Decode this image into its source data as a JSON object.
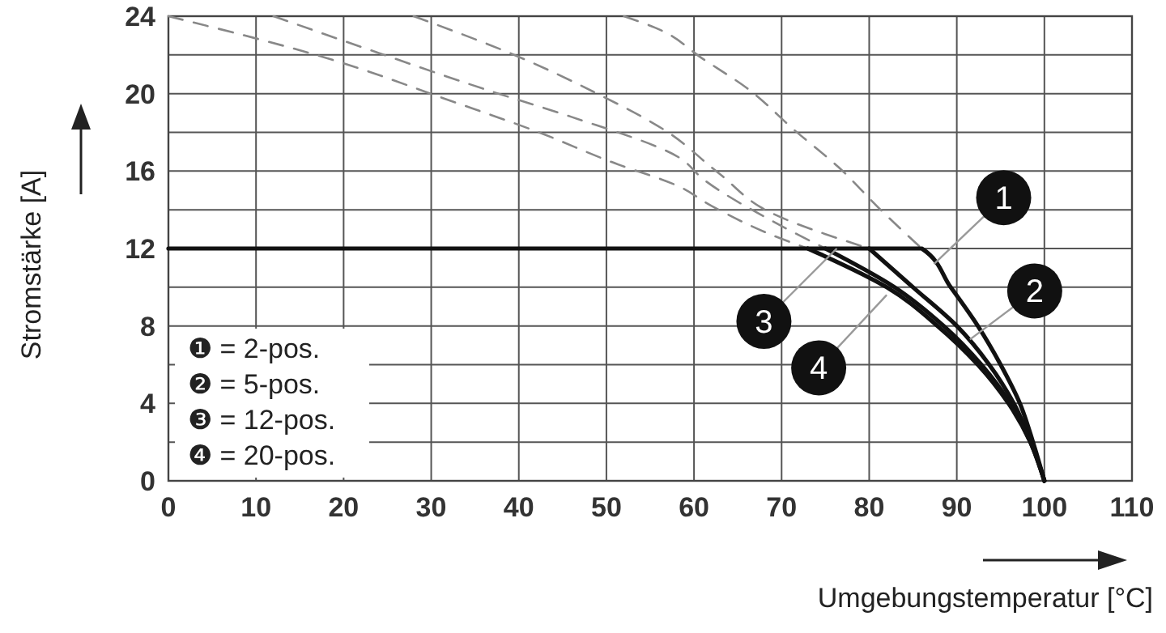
{
  "chart_data": {
    "type": "line",
    "xlabel": "Umgebungstemperatur [°C]",
    "ylabel": "Stromstärke [A]",
    "xlim": [
      0,
      110
    ],
    "xticks": [
      0,
      10,
      20,
      30,
      40,
      50,
      60,
      70,
      80,
      90,
      100,
      110
    ],
    "ylim": [
      0,
      24
    ],
    "yticks": [
      0,
      {
        "value": 2,
        "label": null
      },
      4,
      {
        "value": 6,
        "label": null
      },
      8,
      {
        "value": 10,
        "label": null
      },
      12,
      {
        "value": 14,
        "label": null
      },
      16,
      {
        "value": 18,
        "label": null
      },
      20,
      {
        "value": 22,
        "label": null
      },
      24
    ],
    "grid": true,
    "marker": "none",
    "series": [
      {
        "color": "#111111",
        "line_style": "solid",
        "x": [
          0,
          86,
          89.3,
          92.4,
          95,
          97.2,
          98.7,
          100
        ],
        "values": [
          12,
          12,
          10,
          8,
          6,
          4,
          2,
          0
        ]
      },
      {
        "color": "#111111",
        "line_style": "solid",
        "x": [
          80,
          85,
          90,
          93.7,
          96.5,
          98.5,
          100
        ],
        "values": [
          12,
          10,
          8,
          6,
          4,
          2,
          0
        ]
      },
      {
        "color": "#111111",
        "line_style": "solid",
        "x": [
          75,
          82.9,
          88.5,
          92.8,
          96.1,
          98.4,
          100
        ],
        "values": [
          12,
          10,
          8,
          6,
          4,
          2,
          0
        ]
      },
      {
        "color": "#111111",
        "line_style": "solid",
        "x": [
          73,
          82,
          87.8,
          92.4,
          95.9,
          98.4,
          100
        ],
        "values": [
          12,
          10,
          8,
          6,
          4,
          2,
          0
        ]
      },
      {
        "color": "#888888",
        "line_style": "dashed",
        "x": [
          52,
          55.6,
          61,
          66,
          71.5,
          76.5,
          81.3,
          86
        ],
        "values": [
          24,
          23.4,
          21.8,
          20.3,
          18.1,
          16.2,
          14,
          12
        ]
      },
      {
        "color": "#888888",
        "line_style": "dashed",
        "x": [
          28,
          40,
          48.5,
          56.7,
          62.8,
          69,
          80
        ],
        "values": [
          24,
          21.9,
          20.1,
          18.1,
          15.9,
          13.8,
          12
        ]
      },
      {
        "color": "#888888",
        "line_style": "dashed",
        "x": [
          12,
          24,
          36.3,
          46,
          58.3,
          61,
          69,
          75
        ],
        "values": [
          24,
          22.1,
          20.2,
          18.8,
          16.7,
          15.6,
          13.4,
          12
        ]
      },
      {
        "color": "#888888",
        "line_style": "dashed",
        "x": [
          0,
          17.6,
          32.4,
          42.3,
          50.4,
          58.3,
          62,
          70,
          73
        ],
        "values": [
          24,
          21.9,
          19.6,
          18,
          16.5,
          15.2,
          14.2,
          12.5,
          12
        ]
      }
    ],
    "annotations": [
      {
        "text": "1",
        "x": 87.4,
        "y": 11.2
      },
      {
        "text": "2",
        "x": 91.5,
        "y": 7.3
      },
      {
        "text": "3",
        "x": 76.3,
        "y": 12
      },
      {
        "text": "4",
        "x": 82,
        "y": 9.6
      },
      "❶ = 2-pos.",
      "❷ = 5-pos.",
      "❸ = 12-pos.",
      "❹ = 20-pos."
    ]
  }
}
